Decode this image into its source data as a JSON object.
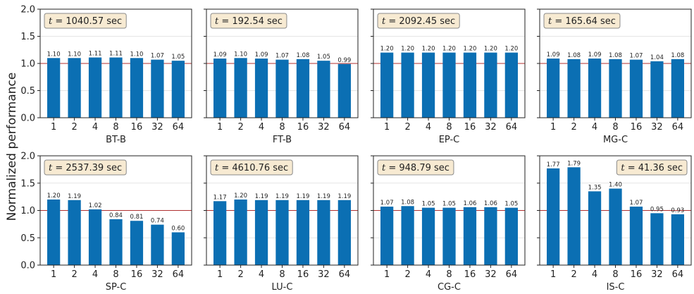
{
  "figure": {
    "ylabel": "Normalized performance"
  },
  "chart_data": [
    {
      "type": "bar",
      "xlabel": "BT-B",
      "time_label": "t = 1040.57 sec",
      "time_value": "1040.57 sec",
      "categories": [
        "1",
        "2",
        "4",
        "8",
        "16",
        "32",
        "64"
      ],
      "values": [
        1.1,
        1.1,
        1.11,
        1.11,
        1.1,
        1.07,
        1.05
      ],
      "value_labels": [
        "1.10",
        "1.10",
        "1.11",
        "1.11",
        "1.10",
        "1.07",
        "1.05"
      ],
      "ylim": [
        0,
        2.0
      ],
      "yticks": [
        "0.0",
        "0.5",
        "1.0",
        "1.5",
        "2.0"
      ],
      "reference_line": 1.0,
      "grid": true,
      "annotation_position": "top-left"
    },
    {
      "type": "bar",
      "xlabel": "FT-B",
      "time_label": "t = 192.54 sec",
      "time_value": "192.54 sec",
      "categories": [
        "1",
        "2",
        "4",
        "8",
        "16",
        "32",
        "64"
      ],
      "values": [
        1.09,
        1.1,
        1.09,
        1.07,
        1.08,
        1.05,
        0.99
      ],
      "value_labels": [
        "1.09",
        "1.10",
        "1.09",
        "1.07",
        "1.08",
        "1.05",
        "0.99"
      ],
      "ylim": [
        0,
        2.0
      ],
      "yticks": [
        "0.0",
        "0.5",
        "1.0",
        "1.5",
        "2.0"
      ],
      "reference_line": 1.0,
      "grid": true,
      "annotation_position": "top-left"
    },
    {
      "type": "bar",
      "xlabel": "EP-C",
      "time_label": "t = 2092.45 sec",
      "time_value": "2092.45 sec",
      "categories": [
        "1",
        "2",
        "4",
        "8",
        "16",
        "32",
        "64"
      ],
      "values": [
        1.2,
        1.2,
        1.2,
        1.2,
        1.2,
        1.2,
        1.2
      ],
      "value_labels": [
        "1.20",
        "1.20",
        "1.20",
        "1.20",
        "1.20",
        "1.20",
        "1.20"
      ],
      "ylim": [
        0,
        2.0
      ],
      "yticks": [
        "0.0",
        "0.5",
        "1.0",
        "1.5",
        "2.0"
      ],
      "reference_line": 1.0,
      "grid": true,
      "annotation_position": "top-left"
    },
    {
      "type": "bar",
      "xlabel": "MG-C",
      "time_label": "t = 165.64 sec",
      "time_value": "165.64 sec",
      "categories": [
        "1",
        "2",
        "4",
        "8",
        "16",
        "32",
        "64"
      ],
      "values": [
        1.09,
        1.08,
        1.09,
        1.08,
        1.07,
        1.04,
        1.08
      ],
      "value_labels": [
        "1.09",
        "1.08",
        "1.09",
        "1.08",
        "1.07",
        "1.04",
        "1.08"
      ],
      "ylim": [
        0,
        2.0
      ],
      "yticks": [
        "0.0",
        "0.5",
        "1.0",
        "1.5",
        "2.0"
      ],
      "reference_line": 1.0,
      "grid": true,
      "annotation_position": "top-left"
    },
    {
      "type": "bar",
      "xlabel": "SP-C",
      "time_label": "t = 2537.39 sec",
      "time_value": "2537.39 sec",
      "categories": [
        "1",
        "2",
        "4",
        "8",
        "16",
        "32",
        "64"
      ],
      "values": [
        1.2,
        1.19,
        1.02,
        0.84,
        0.81,
        0.74,
        0.6
      ],
      "value_labels": [
        "1.20",
        "1.19",
        "1.02",
        "0.84",
        "0.81",
        "0.74",
        "0.60"
      ],
      "ylim": [
        0,
        2.0
      ],
      "yticks": [
        "0.0",
        "0.5",
        "1.0",
        "1.5",
        "2.0"
      ],
      "reference_line": 1.0,
      "grid": true,
      "annotation_position": "top-left"
    },
    {
      "type": "bar",
      "xlabel": "LU-C",
      "time_label": "t = 4610.76 sec",
      "time_value": "4610.76 sec",
      "categories": [
        "1",
        "2",
        "4",
        "8",
        "16",
        "32",
        "64"
      ],
      "values": [
        1.17,
        1.2,
        1.19,
        1.19,
        1.19,
        1.19,
        1.19
      ],
      "value_labels": [
        "1.17",
        "1.20",
        "1.19",
        "1.19",
        "1.19",
        "1.19",
        "1.19"
      ],
      "ylim": [
        0,
        2.0
      ],
      "yticks": [
        "0.0",
        "0.5",
        "1.0",
        "1.5",
        "2.0"
      ],
      "reference_line": 1.0,
      "grid": true,
      "annotation_position": "top-left"
    },
    {
      "type": "bar",
      "xlabel": "CG-C",
      "time_label": "t = 948.79 sec",
      "time_value": "948.79 sec",
      "categories": [
        "1",
        "2",
        "4",
        "8",
        "16",
        "32",
        "64"
      ],
      "values": [
        1.07,
        1.08,
        1.05,
        1.05,
        1.06,
        1.06,
        1.05
      ],
      "value_labels": [
        "1.07",
        "1.08",
        "1.05",
        "1.05",
        "1.06",
        "1.06",
        "1.05"
      ],
      "ylim": [
        0,
        2.0
      ],
      "yticks": [
        "0.0",
        "0.5",
        "1.0",
        "1.5",
        "2.0"
      ],
      "reference_line": 1.0,
      "grid": true,
      "annotation_position": "top-left"
    },
    {
      "type": "bar",
      "xlabel": "IS-C",
      "time_label": "t = 41.36 sec",
      "time_value": "41.36 sec",
      "categories": [
        "1",
        "2",
        "4",
        "8",
        "16",
        "32",
        "64"
      ],
      "values": [
        1.77,
        1.79,
        1.35,
        1.4,
        1.07,
        0.95,
        0.93
      ],
      "value_labels": [
        "1.77",
        "1.79",
        "1.35",
        "1.40",
        "1.07",
        "0.95",
        "0.93"
      ],
      "ylim": [
        0,
        2.0
      ],
      "yticks": [
        "0.0",
        "0.5",
        "1.0",
        "1.5",
        "2.0"
      ],
      "reference_line": 1.0,
      "grid": true,
      "annotation_position": "top-right"
    }
  ],
  "colors": {
    "bar": "#0b6fb3",
    "reference_line": "#b03030",
    "grid": "#dddddd",
    "annotation_fill": "#f7ead2",
    "annotation_stroke": "#8a8a8a",
    "axis": "#222222"
  }
}
